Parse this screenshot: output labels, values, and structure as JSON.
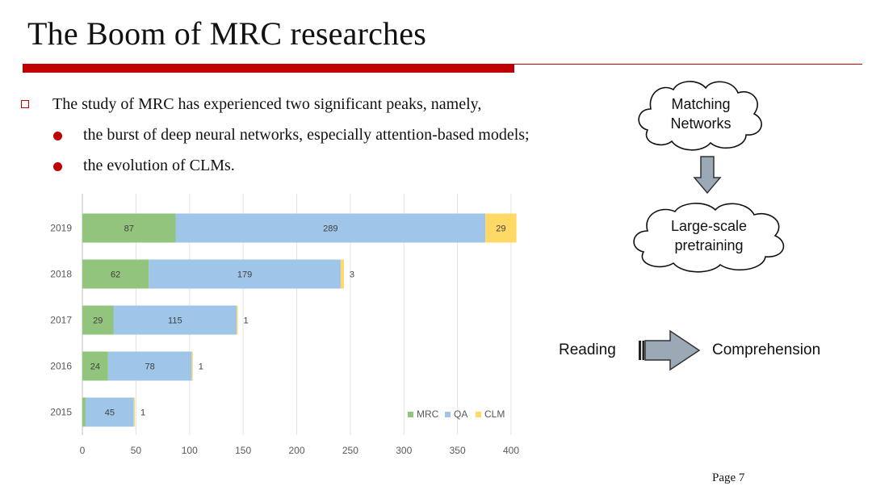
{
  "slide": {
    "title": "The Boom of MRC researches",
    "page_label": "Page 7"
  },
  "bullets": {
    "main": "The study of MRC has experienced two significant peaks, namely,",
    "sub": [
      "the burst of deep neural networks, especially attention-based models;",
      "the evolution of CLMs."
    ]
  },
  "diagram": {
    "cloud_top": [
      "Matching",
      "Networks"
    ],
    "cloud_bottom": [
      "Large-scale",
      "pretraining"
    ],
    "flow_left": "Reading",
    "flow_right": "Comprehension"
  },
  "colors": {
    "accent": "#c00000",
    "mrc": "#92c47d",
    "qa": "#9fc5e8",
    "clm": "#ffd966",
    "arrow_fill": "#9aa9b5"
  },
  "chart_data": {
    "type": "bar",
    "orientation": "horizontal",
    "stacked": true,
    "categories": [
      "2019",
      "2018",
      "2017",
      "2016",
      "2015"
    ],
    "series": [
      {
        "name": "MRC",
        "values": [
          87,
          62,
          29,
          24,
          3
        ]
      },
      {
        "name": "QA",
        "values": [
          289,
          179,
          115,
          78,
          45
        ]
      },
      {
        "name": "CLM",
        "values": [
          29,
          3,
          1,
          1,
          1
        ]
      }
    ],
    "xlim": [
      0,
      400
    ],
    "xticks": [
      "0",
      "50",
      "100",
      "150",
      "200",
      "250",
      "300",
      "350",
      "400"
    ],
    "grid": "vertical",
    "legend": "bottom-right"
  }
}
